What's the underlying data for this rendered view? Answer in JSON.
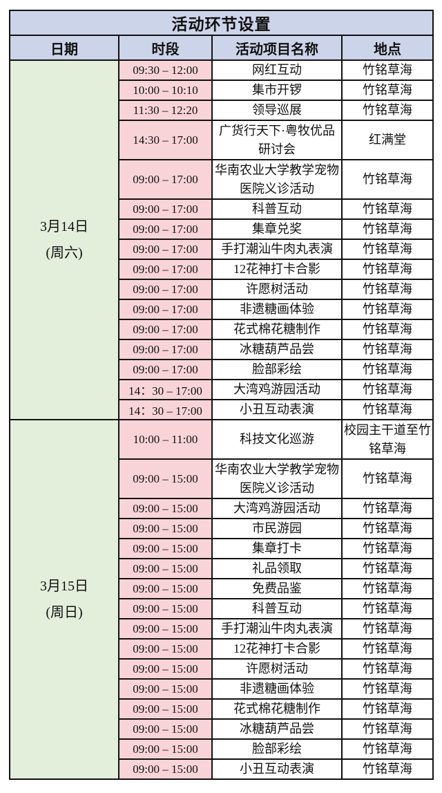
{
  "table": {
    "title": "活动环节设置",
    "headers": [
      "日期",
      "时段",
      "活动项目名称",
      "地点"
    ],
    "colors": {
      "title_bg": "#ccd4ea",
      "header_bg": "#ccd4ea",
      "date_bg": "#e3eedb",
      "time_bg": "#f8d4d8",
      "body_bg": "#ffffff",
      "border": "#111111"
    },
    "sections": [
      {
        "date_line1": "3月14日",
        "date_line2": "(周六)",
        "rows": [
          {
            "time": "09:30 – 12:00",
            "activity": "网红互动",
            "location": "竹铭草海",
            "tall": false
          },
          {
            "time": "10:00 – 10:10",
            "activity": "集市开锣",
            "location": "竹铭草海",
            "tall": false
          },
          {
            "time": "11:30 – 12:20",
            "activity": "领导巡展",
            "location": "竹铭草海",
            "tall": false
          },
          {
            "time": "14:30 – 17:00",
            "activity": "广货行天下·粤牧优品研讨会",
            "location": "红满堂",
            "tall": true
          },
          {
            "time": "09:00 – 17:00",
            "activity": "华南农业大学教学宠物医院义诊活动",
            "location": "竹铭草海",
            "tall": true
          },
          {
            "time": "09:00 – 17:00",
            "activity": "科普互动",
            "location": "竹铭草海",
            "tall": false
          },
          {
            "time": "09:00 – 17:00",
            "activity": "集章兑奖",
            "location": "竹铭草海",
            "tall": false
          },
          {
            "time": "09:00 – 17:00",
            "activity": "手打潮汕牛肉丸表演",
            "location": "竹铭草海",
            "tall": false
          },
          {
            "time": "09:00 – 17:00",
            "activity": "12花神打卡合影",
            "location": "竹铭草海",
            "tall": false
          },
          {
            "time": "09:00 – 17:00",
            "activity": "许愿树活动",
            "location": "竹铭草海",
            "tall": false
          },
          {
            "time": "09:00 – 17:00",
            "activity": "非遗糖画体验",
            "location": "竹铭草海",
            "tall": false
          },
          {
            "time": "09:00 – 17:00",
            "activity": "花式棉花糖制作",
            "location": "竹铭草海",
            "tall": false
          },
          {
            "time": "09:00 – 17:00",
            "activity": "冰糖葫芦品尝",
            "location": "竹铭草海",
            "tall": false
          },
          {
            "time": "09:00 – 17:00",
            "activity": "脸部彩绘",
            "location": "竹铭草海",
            "tall": false
          },
          {
            "time": "14：30 – 17:00",
            "activity": "大湾鸡游园活动",
            "location": "竹铭草海",
            "tall": false
          },
          {
            "time": "14：30 – 17:00",
            "activity": "小丑互动表演",
            "location": "竹铭草海",
            "tall": false
          }
        ]
      },
      {
        "date_line1": "3月15日",
        "date_line2": "(周日)",
        "rows": [
          {
            "time": "10:00 – 11:00",
            "activity": "科技文化巡游",
            "location": "校园主干道至竹铭草海",
            "tall": true
          },
          {
            "time": "09:00 – 15:00",
            "activity": "华南农业大学教学宠物医院义诊活动",
            "location": "竹铭草海",
            "tall": true
          },
          {
            "time": "09:00 – 15:00",
            "activity": "大湾鸡游园活动",
            "location": "竹铭草海",
            "tall": false
          },
          {
            "time": "09:00 – 15:00",
            "activity": "市民游园",
            "location": "竹铭草海",
            "tall": false
          },
          {
            "time": "09:00 – 15:00",
            "activity": "集章打卡",
            "location": "竹铭草海",
            "tall": false
          },
          {
            "time": "09:00 – 15:00",
            "activity": "礼品领取",
            "location": "竹铭草海",
            "tall": false
          },
          {
            "time": "09:00 – 15:00",
            "activity": "免费品鉴",
            "location": "竹铭草海",
            "tall": false
          },
          {
            "time": "09:00 – 15:00",
            "activity": "科普互动",
            "location": "竹铭草海",
            "tall": false
          },
          {
            "time": "09:00 – 15:00",
            "activity": "手打潮汕牛肉丸表演",
            "location": "竹铭草海",
            "tall": false
          },
          {
            "time": "09:00 – 15:00",
            "activity": "12花神打卡合影",
            "location": "竹铭草海",
            "tall": false
          },
          {
            "time": "09:00 – 15:00",
            "activity": "许愿树活动",
            "location": "竹铭草海",
            "tall": false
          },
          {
            "time": "09:00 – 15:00",
            "activity": "非遗糖画体验",
            "location": "竹铭草海",
            "tall": false
          },
          {
            "time": "09:00 – 15:00",
            "activity": "花式棉花糖制作",
            "location": "竹铭草海",
            "tall": false
          },
          {
            "time": "09:00 – 15:00",
            "activity": "冰糖葫芦品尝",
            "location": "竹铭草海",
            "tall": false
          },
          {
            "time": "09:00 – 15:00",
            "activity": "脸部彩绘",
            "location": "竹铭草海",
            "tall": false
          },
          {
            "time": "09:00 – 15:00",
            "activity": "小丑互动表演",
            "location": "竹铭草海",
            "tall": false
          }
        ]
      }
    ]
  }
}
